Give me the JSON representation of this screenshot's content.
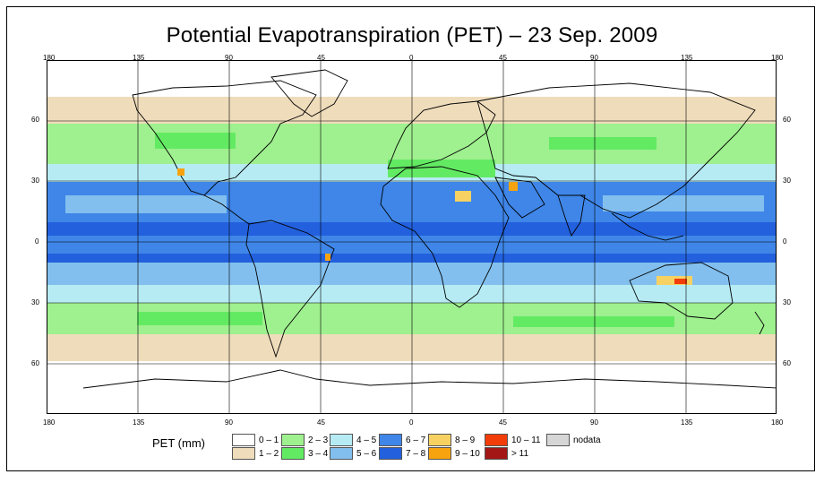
{
  "title": "Potential Evapotranspiration (PET) – 23 Sep. 2009",
  "lon_ticks": [
    "180",
    "135",
    "90",
    "45",
    "0",
    "45",
    "90",
    "135",
    "180"
  ],
  "lat_ticks_left": [
    "60",
    "30",
    "0",
    "30",
    "60"
  ],
  "lat_ticks_right": [
    "60",
    "30",
    "0",
    "30",
    "60"
  ],
  "legend": {
    "title": "PET (mm)",
    "items": [
      {
        "label": "0 – 1",
        "color": "#ffffff"
      },
      {
        "label": "1 – 2",
        "color": "#efdcbb"
      },
      {
        "label": "2 – 3",
        "color": "#9ff08f"
      },
      {
        "label": "3 – 4",
        "color": "#63ea63"
      },
      {
        "label": "4 – 5",
        "color": "#b6ebf4"
      },
      {
        "label": "5 – 6",
        "color": "#82bfee"
      },
      {
        "label": "6 – 7",
        "color": "#3f86e8"
      },
      {
        "label": "7 – 8",
        "color": "#2360dd"
      },
      {
        "label": "8 – 9",
        "color": "#f7d262"
      },
      {
        "label": "9 – 10",
        "color": "#f7a310"
      },
      {
        "label": "10 – 11",
        "color": "#f23d0a"
      },
      {
        "label": "> 11",
        "color": "#a31717"
      },
      {
        "label": "nodata",
        "color": "#d6d6d6"
      }
    ]
  }
}
